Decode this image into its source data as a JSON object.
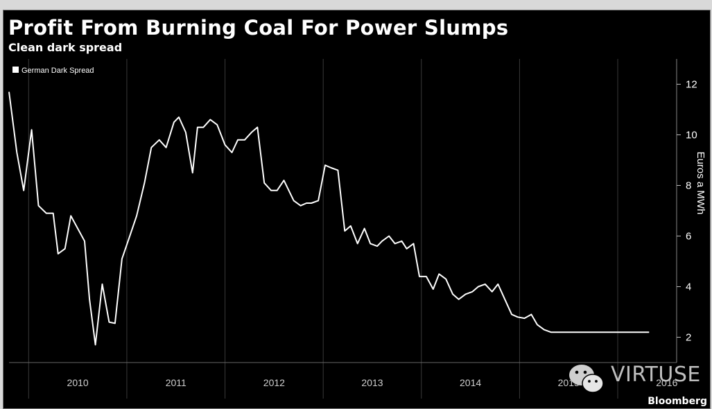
{
  "chart_data": {
    "type": "line",
    "title": "Profit From Burning Coal For Power Slumps",
    "subtitle": "Clean dark spread",
    "ylabel": "Euros a MWh",
    "xlabel": "",
    "ylim": [
      1,
      13
    ],
    "yticks": [
      2,
      4,
      6,
      8,
      10,
      12
    ],
    "xlim": [
      2009.8,
      2016.6
    ],
    "xticks": [
      "2010",
      "2011",
      "2012",
      "2013",
      "2014",
      "2015",
      "2016"
    ],
    "grid": true,
    "legend_position": "top-left",
    "series": [
      {
        "name": "German Dark Spread",
        "color": "#ffffff",
        "x": [
          2009.8,
          2009.88,
          2009.95,
          2010.03,
          2010.1,
          2010.18,
          2010.25,
          2010.3,
          2010.37,
          2010.43,
          2010.5,
          2010.57,
          2010.62,
          2010.68,
          2010.75,
          2010.82,
          2010.88,
          2010.95,
          2011.03,
          2011.1,
          2011.18,
          2011.25,
          2011.33,
          2011.4,
          2011.48,
          2011.53,
          2011.6,
          2011.67,
          2011.72,
          2011.78,
          2011.85,
          2011.92,
          2012.0,
          2012.07,
          2012.13,
          2012.2,
          2012.27,
          2012.33,
          2012.4,
          2012.47,
          2012.53,
          2012.6,
          2012.65,
          2012.7,
          2012.77,
          2012.83,
          2012.88,
          2012.95,
          2013.02,
          2013.08,
          2013.15,
          2013.22,
          2013.28,
          2013.35,
          2013.42,
          2013.48,
          2013.55,
          2013.6,
          2013.67,
          2013.73,
          2013.8,
          2013.85,
          2013.92,
          2013.98,
          2014.05,
          2014.12,
          2014.18,
          2014.25,
          2014.32,
          2014.38,
          2014.45,
          2014.52,
          2014.58,
          2014.65,
          2014.72,
          2014.78,
          2014.85,
          2014.92,
          2014.98,
          2015.05,
          2015.12,
          2015.18,
          2015.25,
          2015.32,
          2015.38,
          2015.45,
          2015.52,
          2015.58,
          2015.65,
          2015.72,
          2015.78,
          2015.85,
          2015.92,
          2015.98,
          2016.05,
          2016.12,
          2016.18,
          2016.25,
          2016.32,
          2016.38
        ],
        "values": [
          11.7,
          9.3,
          7.8,
          10.2,
          7.2,
          6.9,
          6.9,
          5.3,
          5.5,
          6.8,
          6.3,
          5.8,
          3.5,
          1.7,
          4.1,
          2.6,
          2.55,
          5.1,
          6.0,
          6.8,
          8.1,
          9.5,
          9.8,
          9.5,
          10.5,
          10.7,
          10.1,
          8.5,
          10.3,
          10.3,
          10.6,
          10.4,
          9.6,
          9.3,
          9.8,
          9.8,
          10.1,
          10.3,
          8.1,
          7.8,
          7.8,
          8.2,
          7.8,
          7.4,
          7.2,
          7.3,
          7.3,
          7.4,
          8.8,
          8.7,
          8.6,
          6.2,
          6.4,
          5.7,
          6.3,
          5.7,
          5.6,
          5.8,
          6.0,
          5.7,
          5.8,
          5.5,
          5.7,
          4.4,
          4.4,
          3.9,
          4.5,
          4.3,
          3.7,
          3.5,
          3.7,
          3.8,
          4.0,
          4.1,
          3.8,
          4.1,
          3.5,
          2.9,
          2.8,
          2.75,
          2.9,
          2.5,
          2.3,
          2.2,
          2.2,
          2.2,
          2.2,
          2.2,
          2.2,
          2.2,
          2.2,
          2.2,
          2.2,
          2.2,
          2.2,
          2.2,
          2.2,
          2.2,
          2.2,
          2.2
        ]
      }
    ]
  },
  "watermark": {
    "text": "VIRTUSE",
    "icon": "wechat-icon"
  },
  "source": "Bloomberg"
}
